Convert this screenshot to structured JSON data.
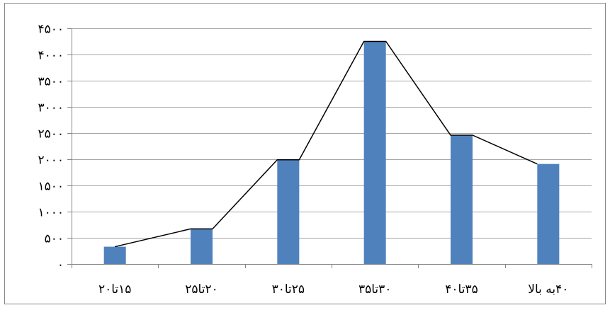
{
  "chart_data": {
    "type": "bar",
    "categories": [
      "۱۵تا۲۰",
      "۲۰تا۲۵",
      "۲۵تا۳۰",
      "۳۰تا۳۵",
      "۳۵تا۴۰",
      "۴۰به بالا"
    ],
    "values": [
      330,
      670,
      1990,
      4250,
      2460,
      1910
    ],
    "line_values": [
      330,
      670,
      1990,
      4250,
      2460,
      1910
    ],
    "y_ticks": [
      "۰",
      "۵۰۰",
      "۱۰۰۰",
      "۱۵۰۰",
      "۲۰۰۰",
      "۲۵۰۰",
      "۳۰۰۰",
      "۳۵۰۰",
      "۴۰۰۰",
      "۴۵۰۰"
    ],
    "ylim": [
      0,
      4500
    ],
    "title": "",
    "xlabel": "",
    "ylabel": "",
    "grid": "horizontal",
    "bar_color": "#4f81bd",
    "line_color": "#000000",
    "gridline_color": "#a6a6a6",
    "border_color": "#868686"
  }
}
